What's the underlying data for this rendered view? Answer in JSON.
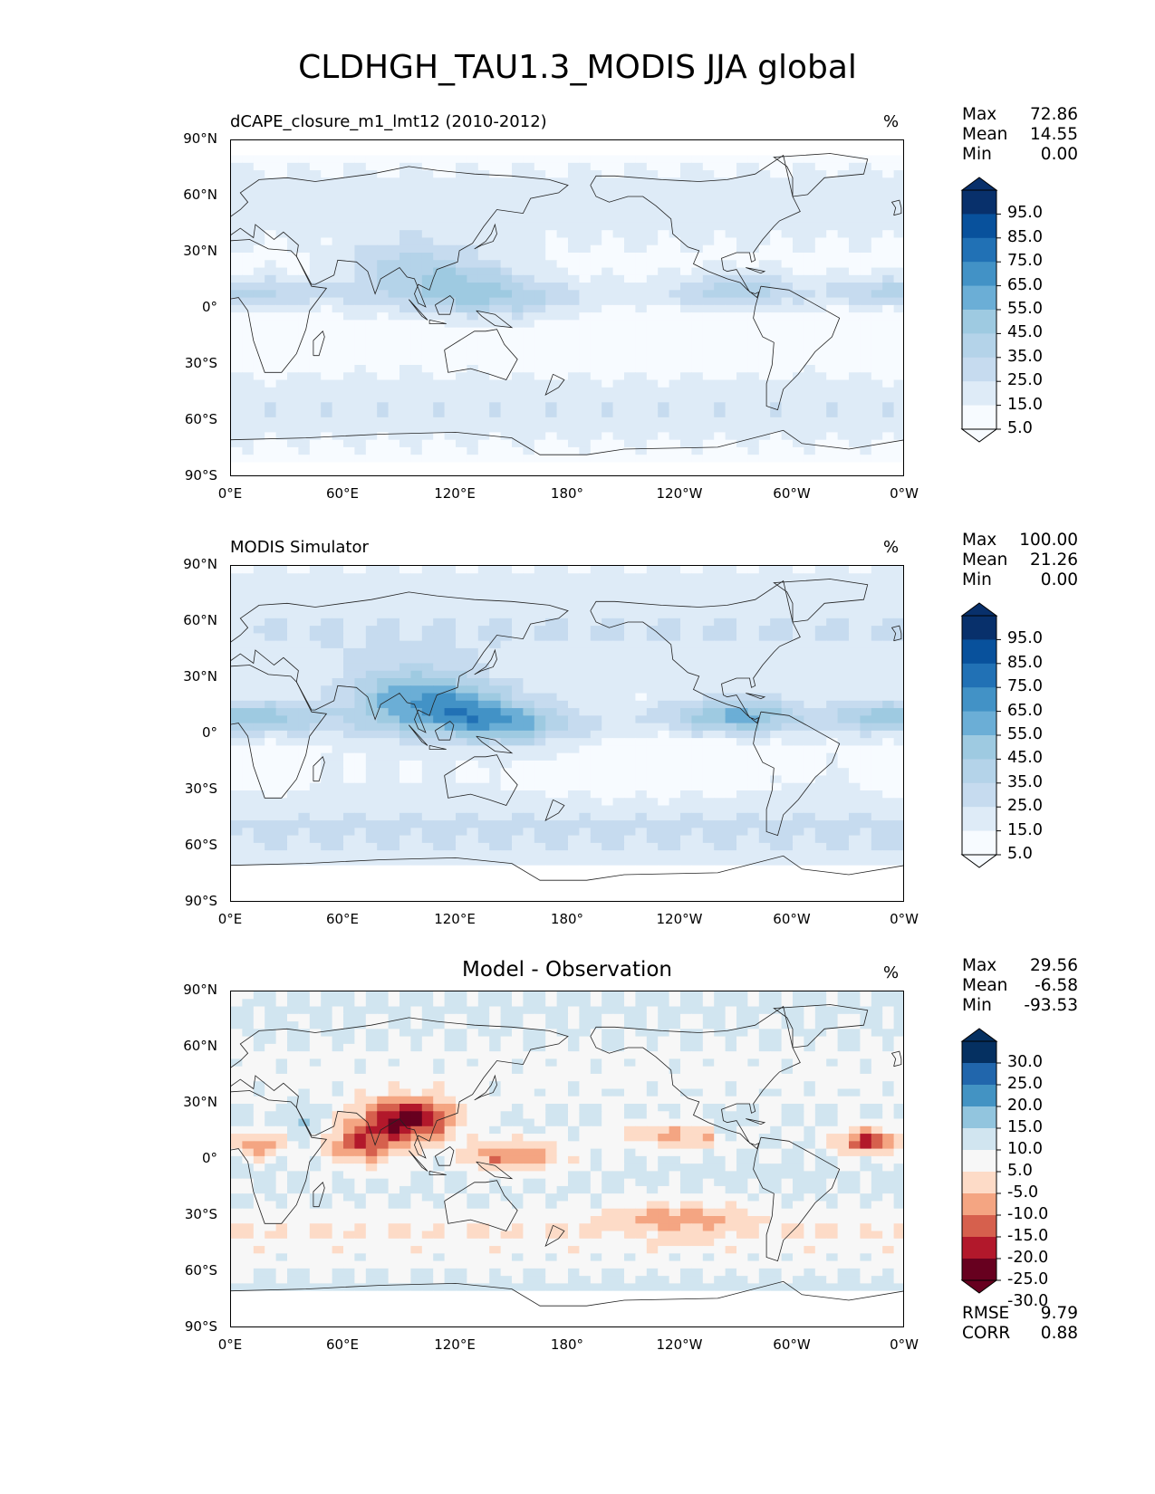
{
  "title": "CLDHGH_TAU1.3_MODIS JJA global",
  "colors": {
    "blues": [
      "#f7fbff",
      "#deebf7",
      "#c6dbef",
      "#b4d3e9",
      "#9ecae1",
      "#6baed6",
      "#4292c6",
      "#2171b5",
      "#08519c",
      "#08306b"
    ],
    "diff": [
      "#67001f",
      "#b2182b",
      "#d6604d",
      "#f4a582",
      "#fddbc7",
      "#f7f7f7",
      "#d1e5f0",
      "#92c5de",
      "#4393c3",
      "#2166ac",
      "#053061"
    ],
    "land_line": "#222222"
  },
  "axes": {
    "lat_ticks": [
      "90°N",
      "60°N",
      "30°N",
      "0°",
      "30°S",
      "60°S",
      "90°S"
    ],
    "lon_ticks": [
      "0°E",
      "60°E",
      "120°E",
      "180°",
      "120°W",
      "60°W",
      "0°W"
    ]
  },
  "panels": [
    {
      "id": "test",
      "title": "dCAPE_closure_m1_lmt12 (2010-2012)",
      "title_style": "left",
      "unit": "%",
      "stats": [
        {
          "label": "Max",
          "value": "72.86"
        },
        {
          "label": "Mean",
          "value": "14.55"
        },
        {
          "label": "Min",
          "value": "0.00"
        }
      ],
      "colorbar_labels": [
        "95.0",
        "85.0",
        "75.0",
        "65.0",
        "55.0",
        "45.0",
        "35.0",
        "25.0",
        "15.0",
        "5.0"
      ],
      "colormap": "blues"
    },
    {
      "id": "ref",
      "title": "MODIS Simulator",
      "title_style": "left",
      "unit": "%",
      "stats": [
        {
          "label": "Max",
          "value": "100.00"
        },
        {
          "label": "Mean",
          "value": "21.26"
        },
        {
          "label": "Min",
          "value": "0.00"
        }
      ],
      "colorbar_labels": [
        "95.0",
        "85.0",
        "75.0",
        "65.0",
        "55.0",
        "45.0",
        "35.0",
        "25.0",
        "15.0",
        "5.0"
      ],
      "colormap": "blues"
    },
    {
      "id": "diff",
      "title": "Model - Observation",
      "title_style": "center",
      "unit": "%",
      "stats": [
        {
          "label": "Max",
          "value": "29.56"
        },
        {
          "label": "Mean",
          "value": "-6.58"
        },
        {
          "label": "Min",
          "value": "-93.53"
        }
      ],
      "colorbar_labels": [
        "30.0",
        "25.0",
        "20.0",
        "15.0",
        "10.0",
        "5.0",
        "-5.0",
        "-10.0",
        "-15.0",
        "-20.0",
        "-25.0",
        "-30.0"
      ],
      "colormap": "diff",
      "metrics": [
        {
          "label": "RMSE",
          "value": "9.79"
        },
        {
          "label": "CORR",
          "value": "0.88"
        }
      ]
    }
  ]
}
